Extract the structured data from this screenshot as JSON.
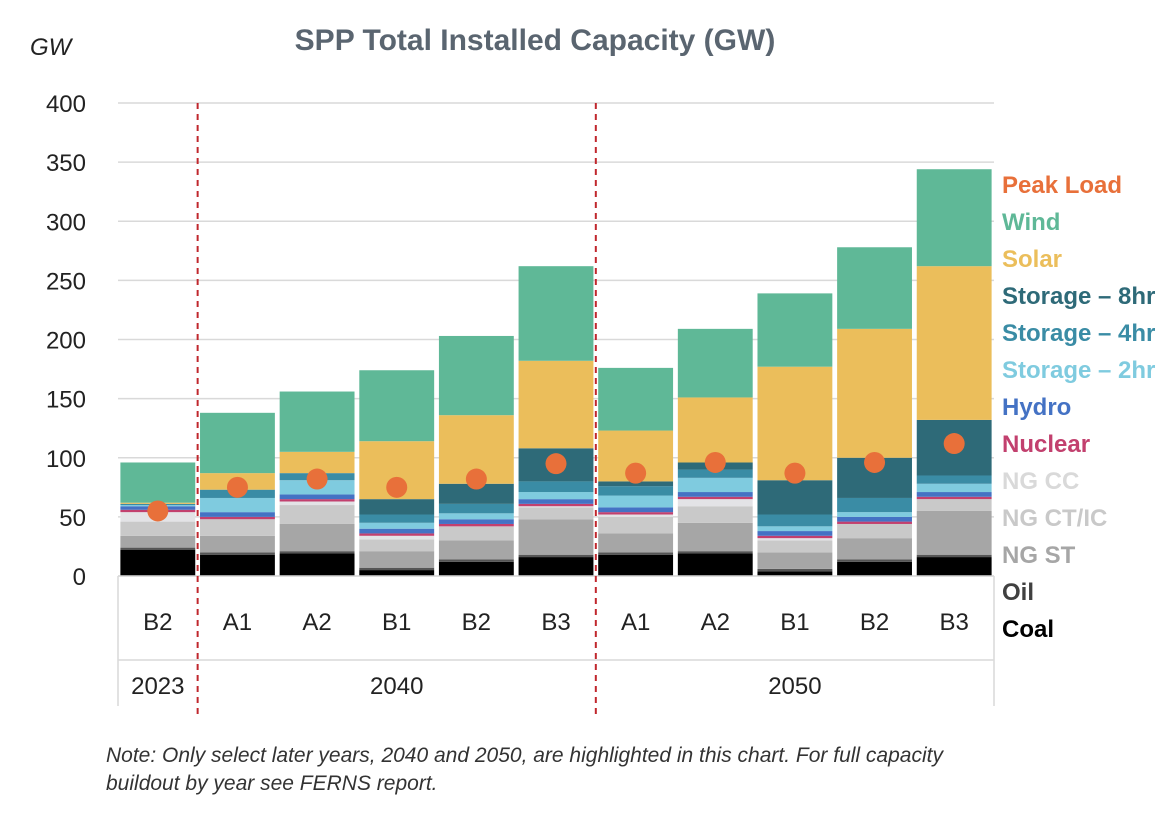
{
  "chart_data": {
    "type": "bar",
    "stacked": true,
    "title": "SPP Total Installed Capacity (GW)",
    "ylabel": "GW",
    "ylim": [
      0,
      400
    ],
    "yticks": [
      "0",
      "50",
      "100",
      "150",
      "200",
      "250",
      "300",
      "350",
      "400"
    ],
    "categories": [
      "B2",
      "A1",
      "A2",
      "B1",
      "B2",
      "B3",
      "A1",
      "A2",
      "B1",
      "B2",
      "B3"
    ],
    "groups": [
      {
        "label": "2023",
        "count": 1
      },
      {
        "label": "2040",
        "count": 5
      },
      {
        "label": "2050",
        "count": 5
      }
    ],
    "series": [
      {
        "name": "Coal",
        "color": "#000000",
        "values": [
          22,
          18,
          19,
          5,
          12,
          16,
          18,
          19,
          4,
          12,
          16
        ]
      },
      {
        "name": "Oil",
        "color": "#555555",
        "values": [
          2,
          2,
          2,
          2,
          2,
          2,
          2,
          2,
          2,
          2,
          2
        ]
      },
      {
        "name": "NG ST",
        "color": "#a6a6a6",
        "values": [
          10,
          14,
          23,
          14,
          16,
          30,
          16,
          24,
          14,
          18,
          37
        ]
      },
      {
        "name": "NG CT/IC",
        "color": "#c9c9c9",
        "values": [
          12,
          14,
          16,
          10,
          12,
          10,
          14,
          14,
          10,
          12,
          10
        ]
      },
      {
        "name": "NG CC",
        "color": "#e3e3e6",
        "values": [
          8,
          0,
          3,
          3,
          0,
          1,
          2,
          6,
          2,
          0,
          0
        ]
      },
      {
        "name": "Nuclear",
        "color": "#c2406e",
        "values": [
          2,
          2,
          2,
          2,
          2,
          2,
          2,
          2,
          2,
          2,
          2
        ]
      },
      {
        "name": "Hydro",
        "color": "#4472c4",
        "values": [
          3,
          4,
          4,
          4,
          4,
          4,
          4,
          4,
          4,
          4,
          4
        ]
      },
      {
        "name": "Storage – 2hr",
        "color": "#7fcbdf",
        "values": [
          1,
          12,
          12,
          5,
          5,
          6,
          10,
          12,
          4,
          4,
          7
        ]
      },
      {
        "name": "Storage – 4hr",
        "color": "#3a8ca5",
        "values": [
          1,
          7,
          6,
          7,
          8,
          9,
          8,
          7,
          10,
          12,
          7
        ]
      },
      {
        "name": "Storage – 8hr",
        "color": "#2e6a78",
        "values": [
          0,
          0,
          0,
          13,
          17,
          28,
          4,
          6,
          29,
          34,
          47
        ]
      },
      {
        "name": "Solar",
        "color": "#ebbe5b",
        "values": [
          1,
          14,
          18,
          49,
          58,
          74,
          43,
          55,
          96,
          109,
          130
        ]
      },
      {
        "name": "Wind",
        "color": "#5fb897",
        "values": [
          34,
          51,
          51,
          60,
          67,
          80,
          53,
          58,
          62,
          69,
          82
        ]
      }
    ],
    "peak_load": {
      "name": "Peak Load",
      "color": "#e8703a",
      "values": [
        55,
        75,
        82,
        75,
        82,
        95,
        87,
        96,
        87,
        96,
        112
      ]
    },
    "legend": [
      "Peak Load",
      "Wind",
      "Solar",
      "Storage – 8hr",
      "Storage – 4hr",
      "Storage – 2hr",
      "Hydro",
      "Nuclear",
      "NG CC",
      "NG CT/IC",
      "NG ST",
      "Oil",
      "Coal"
    ],
    "legend_colors": [
      "#e8703a",
      "#5fb897",
      "#ebbe5b",
      "#2e6a78",
      "#3a8ca5",
      "#7fcbdf",
      "#4472c4",
      "#c2406e",
      "#d9d9d9",
      "#c9c9c9",
      "#a6a6a6",
      "#404040",
      "#000000"
    ],
    "grid": true,
    "legend_position": "right"
  },
  "note": "Note: Only select later years, 2040 and 2050, are highlighted in this chart. For full capacity buildout by year see FERNS report."
}
